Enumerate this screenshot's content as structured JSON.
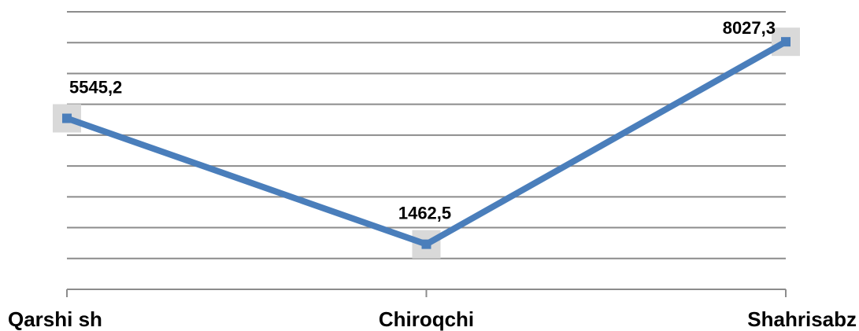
{
  "chart_data": {
    "type": "line",
    "categories": [
      "Qarshi sh",
      "Chiroqchi",
      "Shahrisabz"
    ],
    "series": [
      {
        "color": "#4a7ebb",
        "values": [
          5545.2,
          1462.5,
          8027.3
        ],
        "value_labels": [
          "5545,2",
          "1462,5",
          "8027,3"
        ]
      }
    ],
    "ylim": [
      0,
      9000
    ],
    "yticks": [
      0,
      1000,
      2000,
      3000,
      4000,
      5000,
      6000,
      7000,
      8000,
      9000
    ],
    "grid": true
  }
}
